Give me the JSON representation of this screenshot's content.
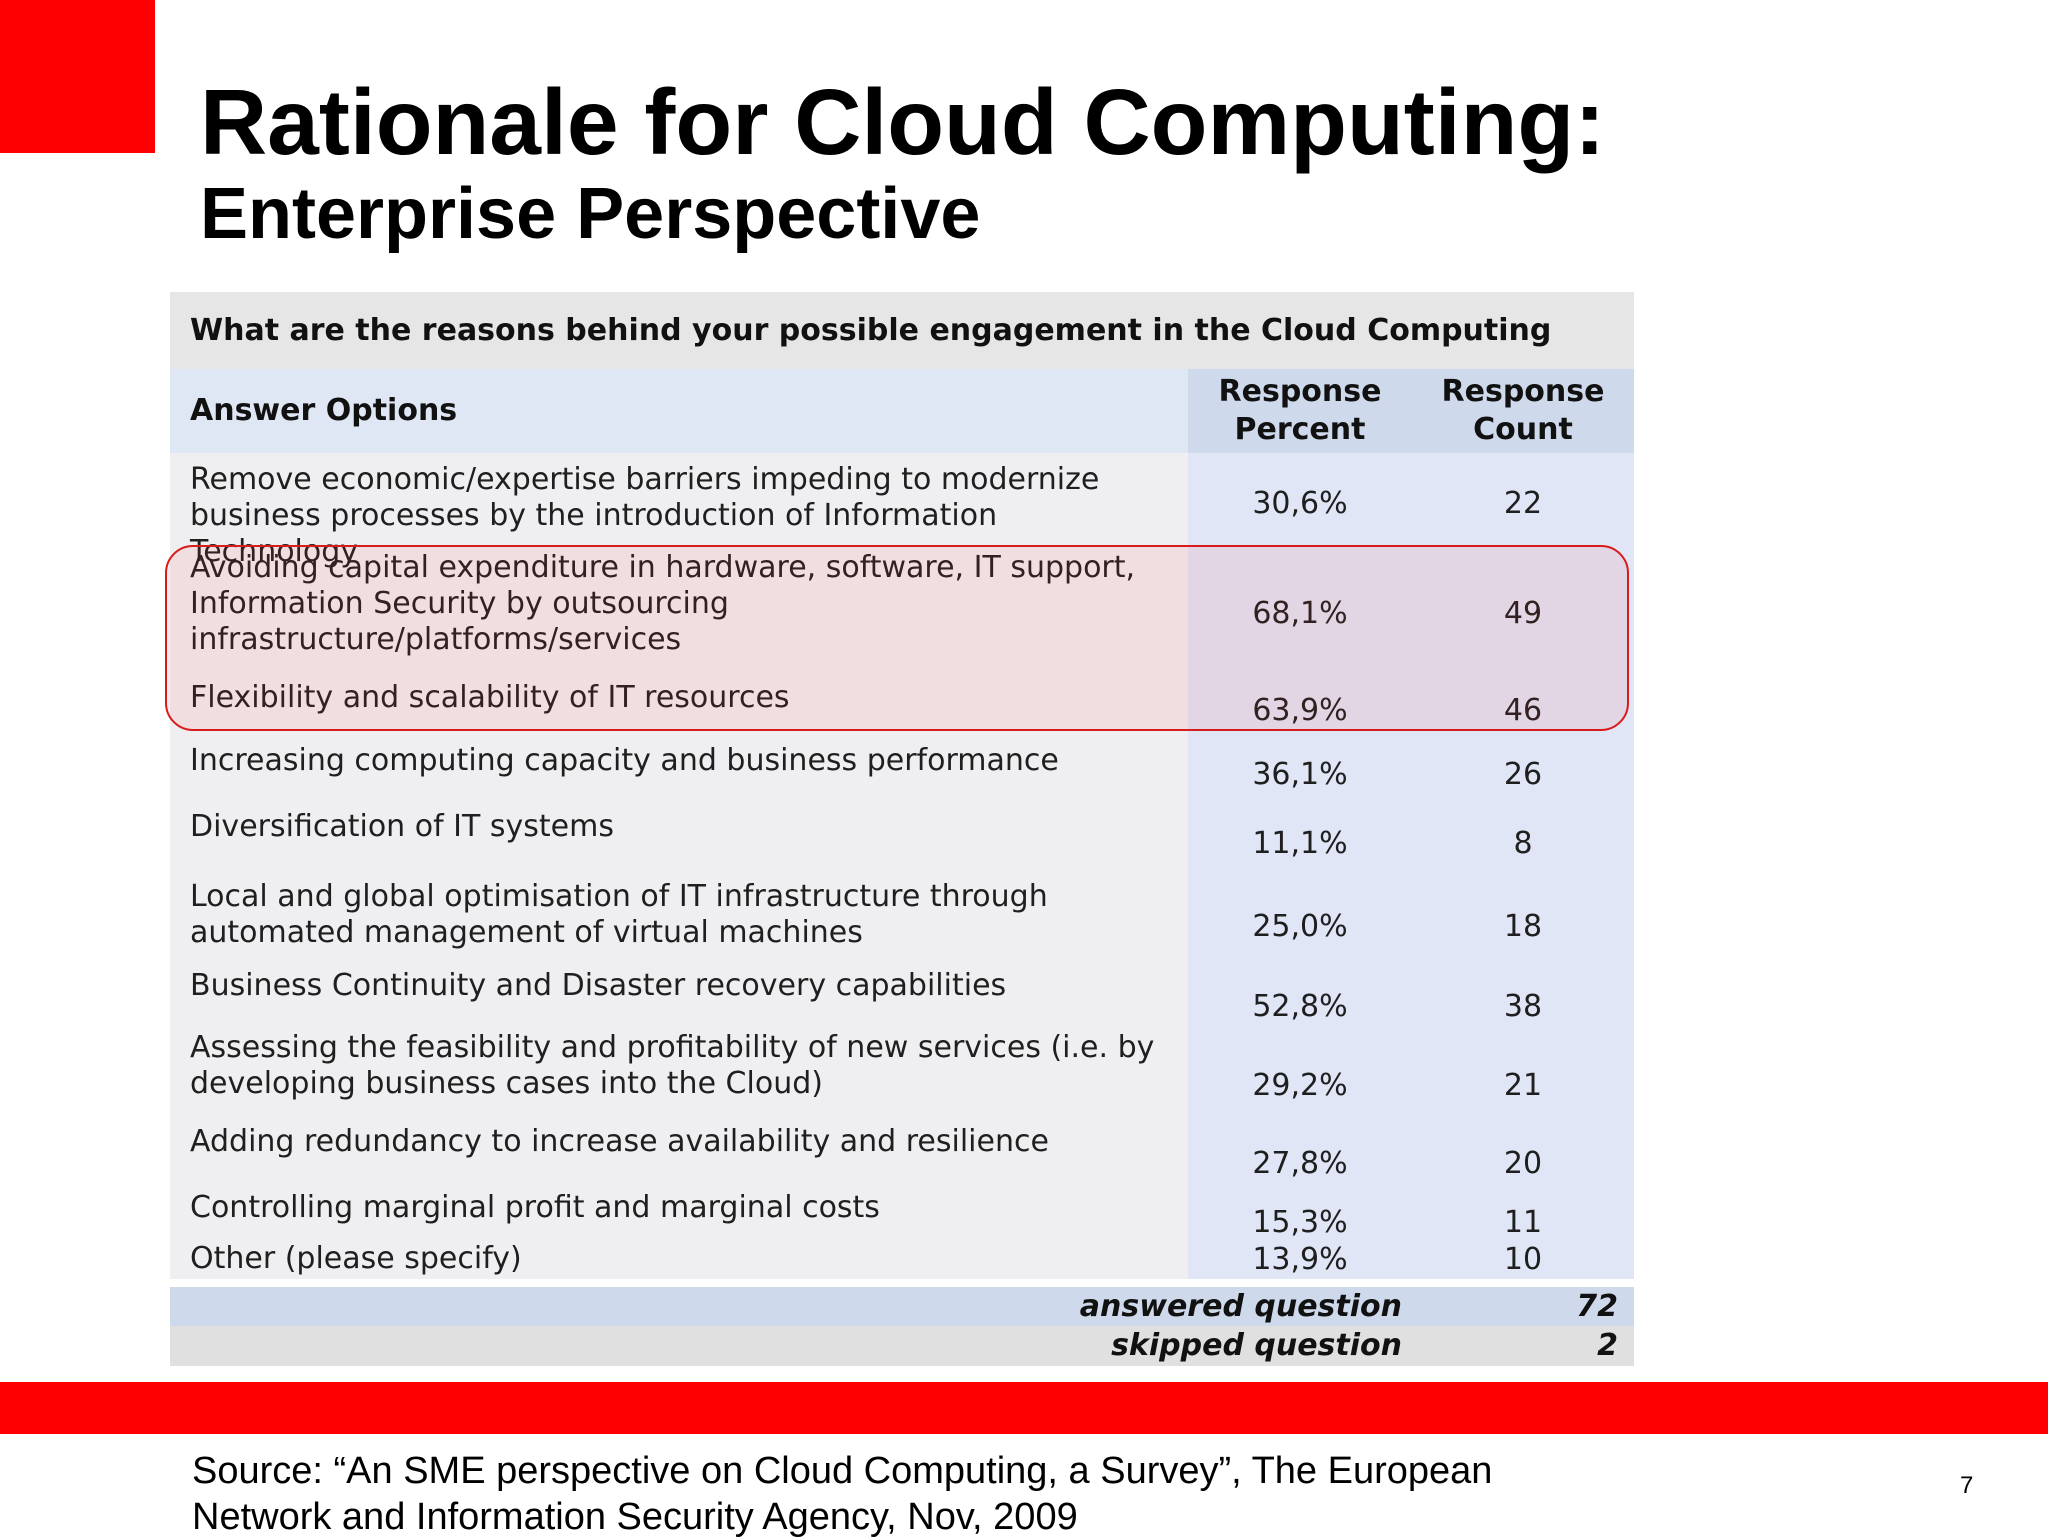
{
  "slide": {
    "title": "Rationale for Cloud Computing:",
    "subtitle": "Enterprise Perspective",
    "page_number": "7",
    "source_line1": "Source: “An SME perspective on Cloud Computing, a Survey”, The European",
    "source_line2": "Network and Information Security Agency, Nov, 2009"
  },
  "table": {
    "question": "What are the reasons behind your possible engagement in the Cloud Computing area?",
    "headers": {
      "answer": "Answer Options",
      "percent_line1": "Response",
      "percent_line2": "Percent",
      "count_line1": "Response",
      "count_line2": "Count"
    },
    "rows": [
      {
        "l1": "Remove economic/expertise barriers impeding to modernize",
        "l2": "business processes by the introduction of Information Technology",
        "l3": "",
        "percent": "30,6%",
        "count": "22"
      },
      {
        "l1": "Avoiding capital expenditure in hardware, software, IT support,",
        "l2": "Information Security by outsourcing",
        "l3": "infrastructure/platforms/services",
        "percent": "68,1%",
        "count": "49"
      },
      {
        "l1": "Flexibility and scalability of IT resources",
        "l2": "",
        "l3": "",
        "percent": "63,9%",
        "count": "46"
      },
      {
        "l1": "Increasing computing capacity and business performance",
        "l2": "",
        "l3": "",
        "percent": "36,1%",
        "count": "26"
      },
      {
        "l1": "Diversification of IT systems",
        "l2": "",
        "l3": "",
        "percent": "11,1%",
        "count": "8"
      },
      {
        "l1": "Local and global optimisation of IT infrastructure through",
        "l2": "automated management of virtual machines",
        "l3": "",
        "percent": "25,0%",
        "count": "18"
      },
      {
        "l1": "Business Continuity and Disaster recovery capabilities",
        "l2": "",
        "l3": "",
        "percent": "52,8%",
        "count": "38"
      },
      {
        "l1": "Assessing the feasibility and profitability of new services (i.e. by",
        "l2": "developing business cases into the Cloud)",
        "l3": "",
        "percent": "29,2%",
        "count": "21"
      },
      {
        "l1": "Adding redundancy to increase availability and resilience",
        "l2": "",
        "l3": "",
        "percent": "27,8%",
        "count": "20"
      },
      {
        "l1": "Controlling marginal profit and marginal costs",
        "l2": "",
        "l3": "",
        "percent": "15,3%",
        "count": "11"
      },
      {
        "l1": "Other (please specify)",
        "l2": "",
        "l3": "",
        "percent": "13,9%",
        "count": "10"
      }
    ],
    "answered_label": "answered question",
    "answered_value": "72",
    "skipped_label": "skipped question",
    "skipped_value": "2"
  },
  "colors": {
    "brand_red": "#fe0000",
    "highlight_border": "#d81b1b"
  }
}
